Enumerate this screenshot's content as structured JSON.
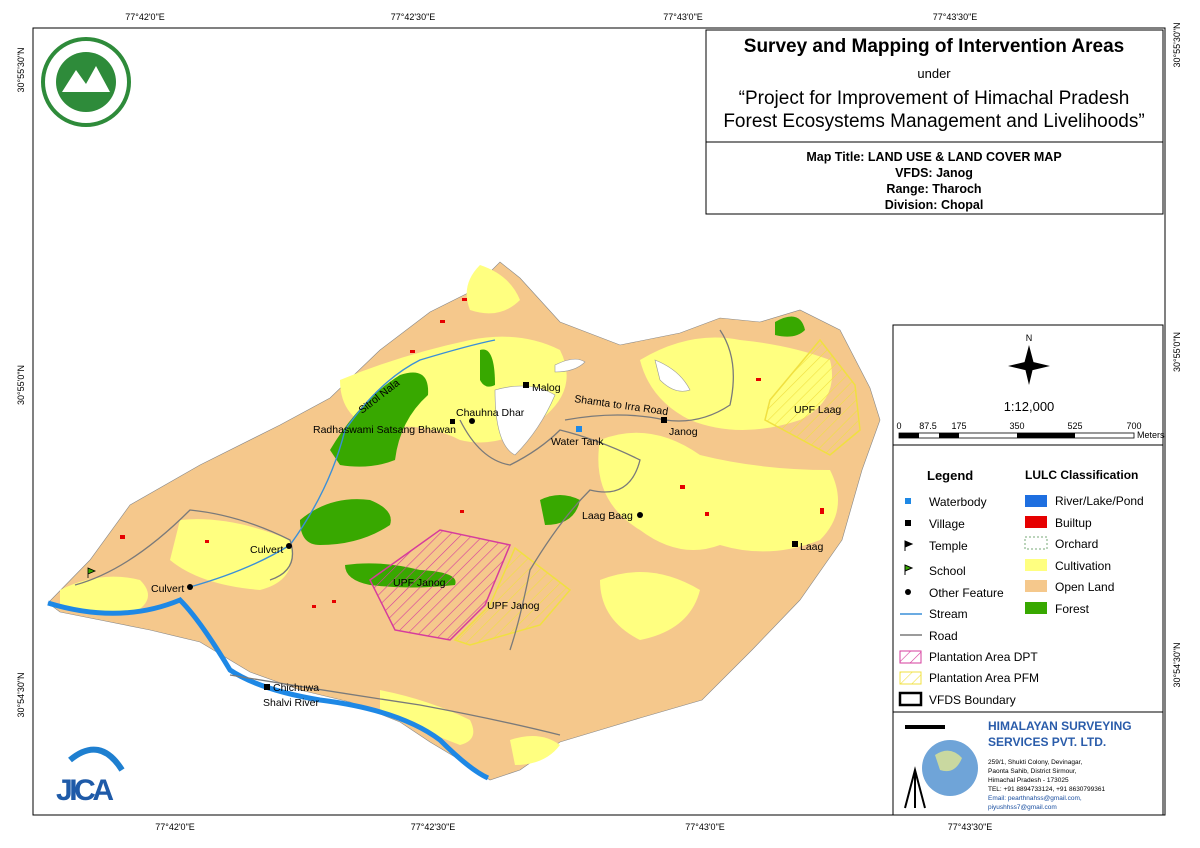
{
  "frame": {
    "top_labels": [
      "77°42'0\"E",
      "77°42'30\"E",
      "77°43'0\"E",
      "77°43'30\"E"
    ],
    "bottom_labels": [
      "77°42'0\"E",
      "77°42'30\"E",
      "77°43'0\"E",
      "77°43'30\"E"
    ],
    "left_labels": [
      "30°55'30\"N",
      "30°55'0\"N",
      "30°54'30\"N"
    ],
    "right_labels": [
      "30°55'30\"N",
      "30°55'0\"N",
      "30°54'30\"N"
    ]
  },
  "header": {
    "title": "Survey and Mapping of Intervention Areas",
    "subtitle": "under",
    "project_line1": "“Project for Improvement of Himachal Pradesh",
    "project_line2": "Forest Ecosystems Management and Livelihoods”"
  },
  "map_info": {
    "map_title": "Map Title: LAND USE & LAND COVER MAP",
    "vfds": "VFDS: Janog",
    "range": "Range: Tharoch",
    "division": "Division: Chopal"
  },
  "north_arrow": "N",
  "scale": "1:12,000",
  "scale_bar": {
    "labels": [
      "0",
      "87.5",
      "175",
      "350",
      "525",
      "700"
    ],
    "unit": "Meters"
  },
  "legend": {
    "title": "Legend",
    "items": [
      "Waterbody",
      "Village",
      "Temple",
      "School",
      "Other Feature",
      "Stream",
      "Road",
      "Plantation Area DPT",
      "Plantation Area PFM",
      "VFDS Boundary"
    ]
  },
  "lulc": {
    "title": "LULC Classification",
    "items": [
      "River/Lake/Pond",
      "Builtup",
      "Orchard",
      "Cultivation",
      "Open Land",
      "Forest"
    ]
  },
  "company": {
    "name_line1": "HIMALAYAN SURVEYING",
    "name_line2": "SERVICES PVT. LTD.",
    "address": [
      "259/1, Shukti Colony, Devinagar,",
      "Paonta Sahib, District Sirmour,",
      "Himachal Pradesh - 173025",
      "TEL: +91 8894733124, +91 8630799361",
      "Email: pearthnahss@gmail.com,",
      "piyushhss7@gmail.com"
    ]
  },
  "logos": {
    "jica": "JICA"
  },
  "places": [
    "Malog",
    "Shamta to Irra Road",
    "Chauhna Dhar",
    "Radhaswami Satsang Bhawan",
    "Janog",
    "Water Tank",
    "Sitrol Nala",
    "UPF Laag",
    "Laag Baag",
    "Laag",
    "Culvert",
    "Culvert",
    "UPF Janog",
    "UPF Janog",
    "Chichuwa",
    "Shalvi River"
  ]
}
